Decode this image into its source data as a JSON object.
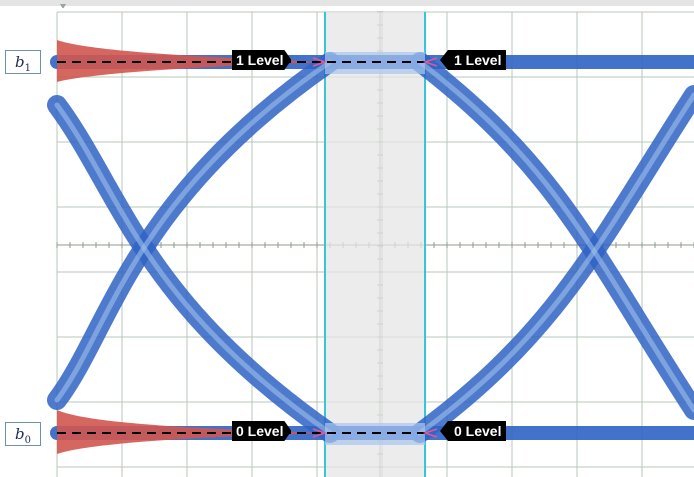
{
  "eye_diagram": {
    "top_level": {
      "symbol": "b",
      "subscript": "1",
      "marker_label_left": "1 Level",
      "marker_label_right": "1 Level"
    },
    "bottom_level": {
      "symbol": "b",
      "subscript": "0",
      "marker_label_left": "0 Level",
      "marker_label_right": "0 Level"
    },
    "colors": {
      "trace": "#2f63c4",
      "histogram": "#d2574f",
      "measurement_window": "#e8e8e8",
      "cursor_lines": "#35c6d8",
      "grid": "#b8c6b8",
      "level_line": "#000000"
    }
  }
}
